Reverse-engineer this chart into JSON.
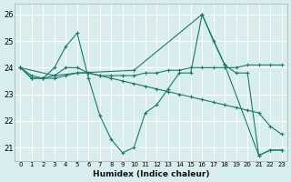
{
  "xlabel": "Humidex (Indice chaleur)",
  "bg_color": "#d8eeee",
  "grid_color": "#ffffff",
  "line_color": "#1a7a6e",
  "xlim": [
    -0.5,
    23.5
  ],
  "ylim": [
    20.5,
    26.4
  ],
  "xticks": [
    0,
    1,
    2,
    3,
    4,
    5,
    6,
    7,
    8,
    9,
    10,
    11,
    12,
    13,
    14,
    15,
    16,
    17,
    18,
    19,
    20,
    21,
    22,
    23
  ],
  "yticks": [
    21,
    22,
    23,
    24,
    25,
    26
  ],
  "series": [
    {
      "x": [
        0,
        1,
        2,
        3,
        4,
        5,
        6,
        7,
        8,
        9,
        10,
        11,
        12,
        13,
        14,
        15,
        16,
        17,
        18,
        19,
        20,
        21,
        22,
        23
      ],
      "y": [
        24.0,
        23.6,
        23.6,
        24.0,
        24.8,
        25.3,
        23.6,
        22.2,
        21.3,
        20.8,
        21.0,
        22.3,
        22.6,
        23.2,
        23.8,
        23.8,
        26.0,
        25.0,
        24.1,
        23.8,
        23.8,
        20.7,
        20.9,
        20.9
      ]
    },
    {
      "x": [
        0,
        1,
        2,
        3,
        4,
        5,
        6,
        7,
        8,
        9,
        10,
        11,
        12,
        13,
        14,
        15,
        16,
        17,
        18,
        19,
        20,
        21,
        22,
        23
      ],
      "y": [
        24.0,
        23.6,
        23.6,
        23.7,
        24.0,
        24.0,
        23.8,
        23.7,
        23.7,
        23.7,
        23.7,
        23.8,
        23.8,
        23.9,
        23.9,
        24.0,
        24.0,
        24.0,
        24.0,
        24.0,
        24.1,
        24.1,
        24.1,
        24.1
      ]
    },
    {
      "x": [
        0,
        3,
        5,
        10,
        16,
        18,
        21,
        22,
        23
      ],
      "y": [
        24.0,
        23.7,
        23.8,
        23.9,
        26.0,
        24.1,
        20.7,
        20.9,
        20.9
      ]
    },
    {
      "x": [
        0,
        1,
        2,
        3,
        4,
        5,
        6,
        7,
        8,
        9,
        10,
        11,
        12,
        13,
        14,
        15,
        16,
        17,
        18,
        19,
        20,
        21,
        22,
        23
      ],
      "y": [
        24.0,
        23.7,
        23.6,
        23.6,
        23.7,
        23.8,
        23.8,
        23.7,
        23.6,
        23.5,
        23.4,
        23.3,
        23.2,
        23.1,
        23.0,
        22.9,
        22.8,
        22.7,
        22.6,
        22.5,
        22.4,
        22.3,
        21.8,
        21.5
      ]
    }
  ]
}
